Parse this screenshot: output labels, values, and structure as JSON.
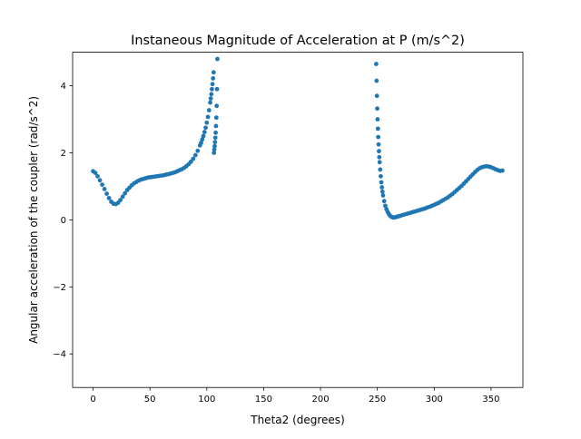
{
  "chart_data": {
    "type": "scatter",
    "title": "Instaneous Magnitude of Acceleration at P (m/s^2)",
    "xlabel": "Theta2 (degrees)",
    "ylabel": "Angular acceleration of the coupler (rad/s^2)",
    "xlim": [
      -18,
      378
    ],
    "ylim": [
      -5,
      5
    ],
    "xticks": [
      0,
      50,
      100,
      150,
      200,
      250,
      300,
      350
    ],
    "yticks": [
      -4,
      -2,
      0,
      2,
      4
    ],
    "grid": false,
    "marker_color": "#1f77b4",
    "series": [
      {
        "x": [
          0,
          2,
          4,
          6,
          8,
          10,
          12,
          14,
          16,
          18,
          20,
          22,
          24,
          26,
          28,
          30,
          32,
          34,
          36,
          38,
          40,
          42,
          44,
          46,
          48,
          50,
          52,
          54,
          56,
          58,
          60,
          62,
          64,
          66,
          68,
          70,
          72,
          74,
          76,
          78,
          80,
          82,
          84,
          86,
          88,
          90,
          92,
          94,
          95,
          96,
          97,
          98,
          99,
          100,
          101,
          102,
          103,
          103.5,
          104,
          104.5,
          105,
          105.5,
          106,
          106.3,
          106.6,
          106.9,
          107.2,
          107.5,
          107.8,
          108.1,
          108.4,
          108.7,
          109,
          109.3,
          249,
          249.3,
          249.6,
          249.9,
          250.2,
          250.5,
          250.8,
          251.1,
          251.4,
          251.7,
          252,
          252.5,
          253,
          253.5,
          254,
          254.5,
          255,
          256,
          257,
          258,
          259,
          260,
          261,
          262,
          263,
          264,
          265,
          266,
          267,
          268,
          269,
          270,
          272,
          274,
          276,
          278,
          280,
          282,
          284,
          286,
          288,
          290,
          292,
          294,
          296,
          298,
          300,
          302,
          304,
          306,
          308,
          310,
          312,
          314,
          316,
          318,
          320,
          322,
          324,
          326,
          328,
          330,
          332,
          334,
          336,
          338,
          340,
          342,
          344,
          346,
          348,
          350,
          352,
          354,
          356,
          358,
          360
        ],
        "y": [
          1.45,
          1.4,
          1.3,
          1.18,
          1.05,
          0.92,
          0.78,
          0.65,
          0.54,
          0.48,
          0.47,
          0.51,
          0.59,
          0.69,
          0.79,
          0.89,
          0.96,
          1.03,
          1.09,
          1.13,
          1.17,
          1.2,
          1.22,
          1.24,
          1.26,
          1.27,
          1.28,
          1.29,
          1.3,
          1.31,
          1.32,
          1.33,
          1.35,
          1.36,
          1.38,
          1.4,
          1.42,
          1.45,
          1.48,
          1.51,
          1.55,
          1.6,
          1.66,
          1.73,
          1.82,
          1.93,
          2.06,
          2.22,
          2.3,
          2.4,
          2.5,
          2.62,
          2.75,
          2.9,
          3.07,
          3.27,
          3.5,
          3.62,
          3.75,
          3.9,
          4.05,
          4.22,
          4.4,
          2.0,
          2.1,
          2.2,
          2.32,
          2.45,
          2.6,
          2.8,
          3.05,
          3.4,
          3.9,
          4.8,
          4.65,
          4.15,
          3.7,
          3.32,
          3.0,
          2.72,
          2.47,
          2.25,
          2.05,
          1.87,
          1.72,
          1.5,
          1.3,
          1.12,
          0.97,
          0.84,
          0.73,
          0.56,
          0.42,
          0.32,
          0.24,
          0.18,
          0.13,
          0.1,
          0.08,
          0.07,
          0.07,
          0.08,
          0.09,
          0.1,
          0.11,
          0.12,
          0.14,
          0.16,
          0.18,
          0.2,
          0.22,
          0.24,
          0.26,
          0.28,
          0.3,
          0.32,
          0.34,
          0.37,
          0.39,
          0.42,
          0.45,
          0.48,
          0.51,
          0.55,
          0.59,
          0.63,
          0.67,
          0.72,
          0.77,
          0.83,
          0.89,
          0.95,
          1.01,
          1.08,
          1.15,
          1.22,
          1.29,
          1.36,
          1.43,
          1.49,
          1.54,
          1.57,
          1.59,
          1.6,
          1.59,
          1.57,
          1.54,
          1.51,
          1.48,
          1.46,
          1.47
        ]
      }
    ]
  }
}
